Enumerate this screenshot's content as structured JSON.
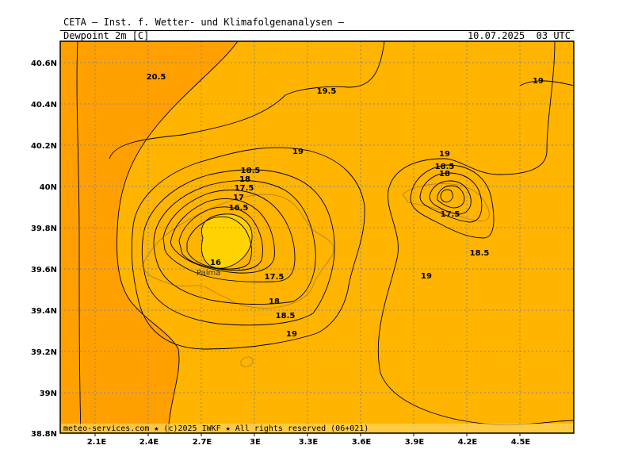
{
  "header": {
    "institution": "CETA — Inst. f. Wetter- und Klimafolgenanalysen —",
    "parameter": "Dewpoint_2m_[C]",
    "valid_time": "10.07.2025  03 UTC"
  },
  "footer": {
    "copyright": "meteo-services.com ★ (c)2025 IWKF ★ All rights reserved (06+021)"
  },
  "axes": {
    "lat_labels": [
      "40.6N",
      "40.4N",
      "40.2N",
      "40N",
      "39.8N",
      "39.6N",
      "39.4N",
      "39.2N",
      "39N",
      "38.8N"
    ],
    "lon_labels": [
      "2.1E",
      "2.4E",
      "2.7E",
      "3E",
      "3.3E",
      "3.6E",
      "3.9E",
      "4.2E",
      "4.5E"
    ]
  },
  "places": [
    {
      "name": "Palma"
    }
  ],
  "contour_labels": [
    "20.5",
    "19.5",
    "19",
    "19",
    "18.5",
    "18",
    "17.5",
    "17",
    "16.5",
    "16",
    "17.5",
    "18",
    "18.5",
    "19",
    "19",
    "18.5",
    "18",
    "17.5",
    "18.5",
    "19"
  ],
  "colors": {
    "dark_orange": "#ffa000",
    "orange": "#ffb400",
    "yellow": "#ffd200",
    "contour": "#000000",
    "coast": "#b07d2e"
  }
}
